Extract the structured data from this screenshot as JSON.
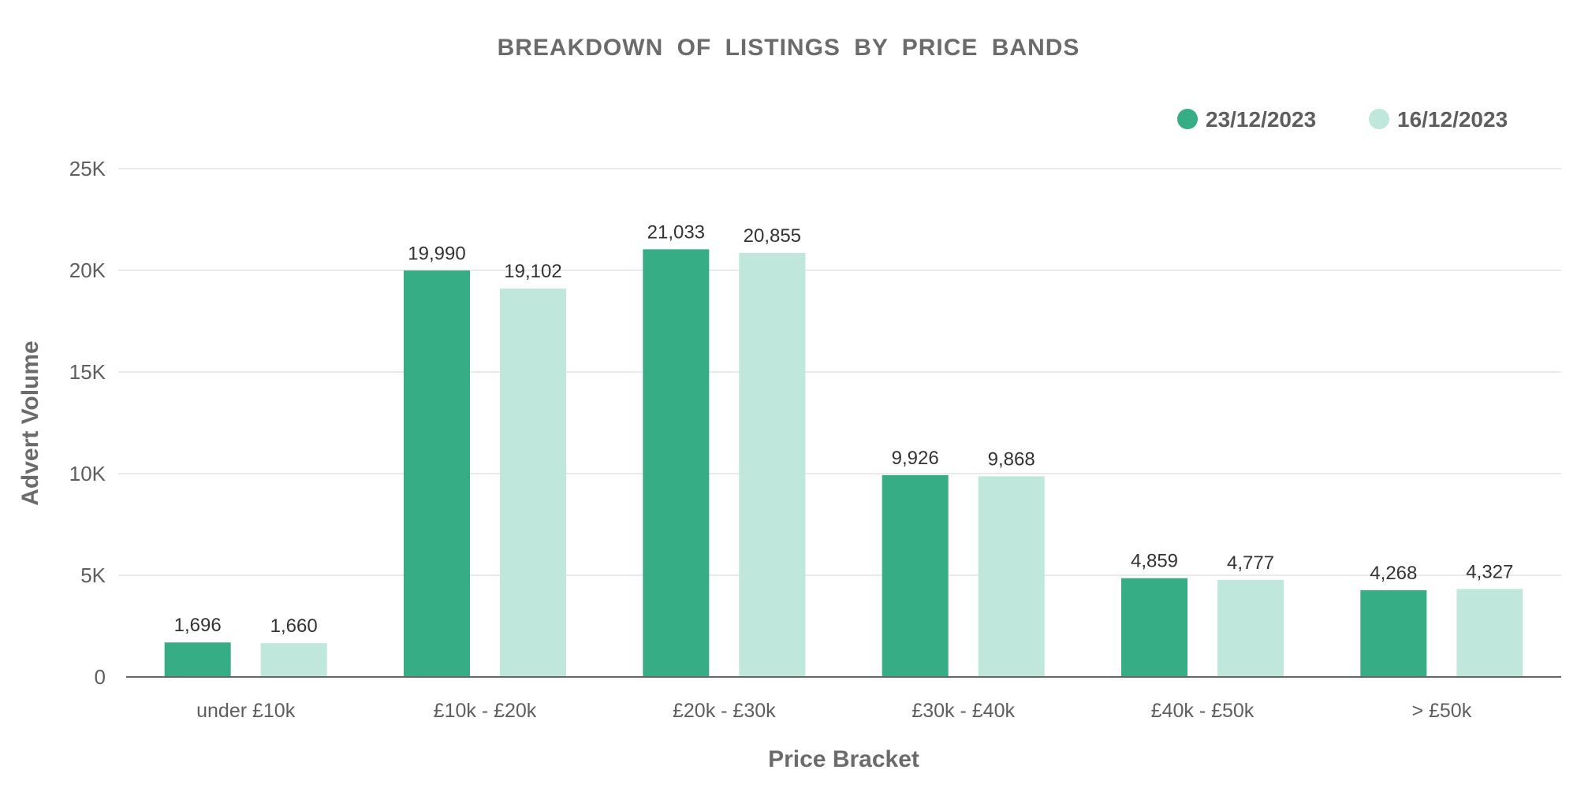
{
  "chart_data": {
    "type": "bar",
    "title": "BREAKDOWN OF LISTINGS BY PRICE BANDS",
    "xlabel": "Price Bracket",
    "ylabel": "Advert Volume",
    "categories": [
      "under £10k",
      "£10k - £20k",
      "£20k - £30k",
      "£30k - £40k",
      "£40k - £50k",
      "> £50k"
    ],
    "series": [
      {
        "name": "23/12/2023",
        "color": "#36ad85",
        "values": [
          1696,
          19990,
          21033,
          9926,
          4859,
          4268
        ],
        "labels": [
          "1,696",
          "19,990",
          "21,033",
          "9,926",
          "4,859",
          "4,268"
        ]
      },
      {
        "name": "16/12/2023",
        "color": "#bfe7db",
        "values": [
          1660,
          19102,
          20855,
          9868,
          4777,
          4327
        ],
        "labels": [
          "1,660",
          "19,102",
          "20,855",
          "9,868",
          "4,777",
          "4,327"
        ]
      }
    ],
    "ylim": [
      0,
      25000
    ],
    "yticks": [
      0,
      5000,
      10000,
      15000,
      20000,
      25000
    ],
    "ytick_labels": [
      "0",
      "5K",
      "10K",
      "15K",
      "20K",
      "25K"
    ],
    "grid": true,
    "legend_position": "top-right",
    "data_labels": true
  }
}
